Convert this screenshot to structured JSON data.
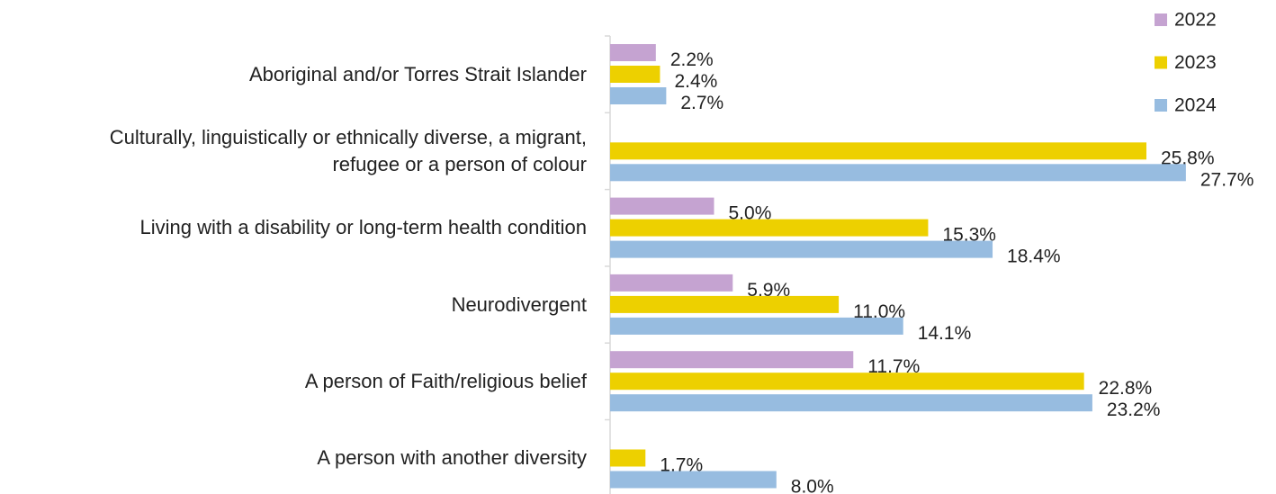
{
  "chart_data": {
    "type": "bar",
    "orientation": "horizontal",
    "categories": [
      "Aboriginal and/or Torres Strait Islander",
      "Culturally, linguistically or ethnically diverse, a migrant,\nrefugee or a person of colour",
      "Living with a disability or long-term health condition",
      "Neurodivergent",
      "A person of Faith/religious belief",
      "A person with another diversity"
    ],
    "series": [
      {
        "name": "2022",
        "color": "#c5a3d1",
        "values": [
          2.2,
          null,
          5.0,
          5.9,
          11.7,
          null
        ],
        "value_labels": [
          "2.2%",
          null,
          "5.0%",
          "5.9%",
          "11.7%",
          null
        ]
      },
      {
        "name": "2023",
        "color": "#edd000",
        "values": [
          2.4,
          25.8,
          15.3,
          11.0,
          22.8,
          1.7
        ],
        "value_labels": [
          "2.4%",
          "25.8%",
          "15.3%",
          "11.0%",
          "22.8%",
          "1.7%"
        ]
      },
      {
        "name": "2024",
        "color": "#97bce0",
        "values": [
          2.7,
          27.7,
          18.4,
          14.1,
          23.2,
          8.0
        ],
        "value_labels": [
          "2.7%",
          "27.7%",
          "18.4%",
          "14.1%",
          "23.2%",
          "8.0%"
        ]
      }
    ],
    "legend": "top-right"
  }
}
